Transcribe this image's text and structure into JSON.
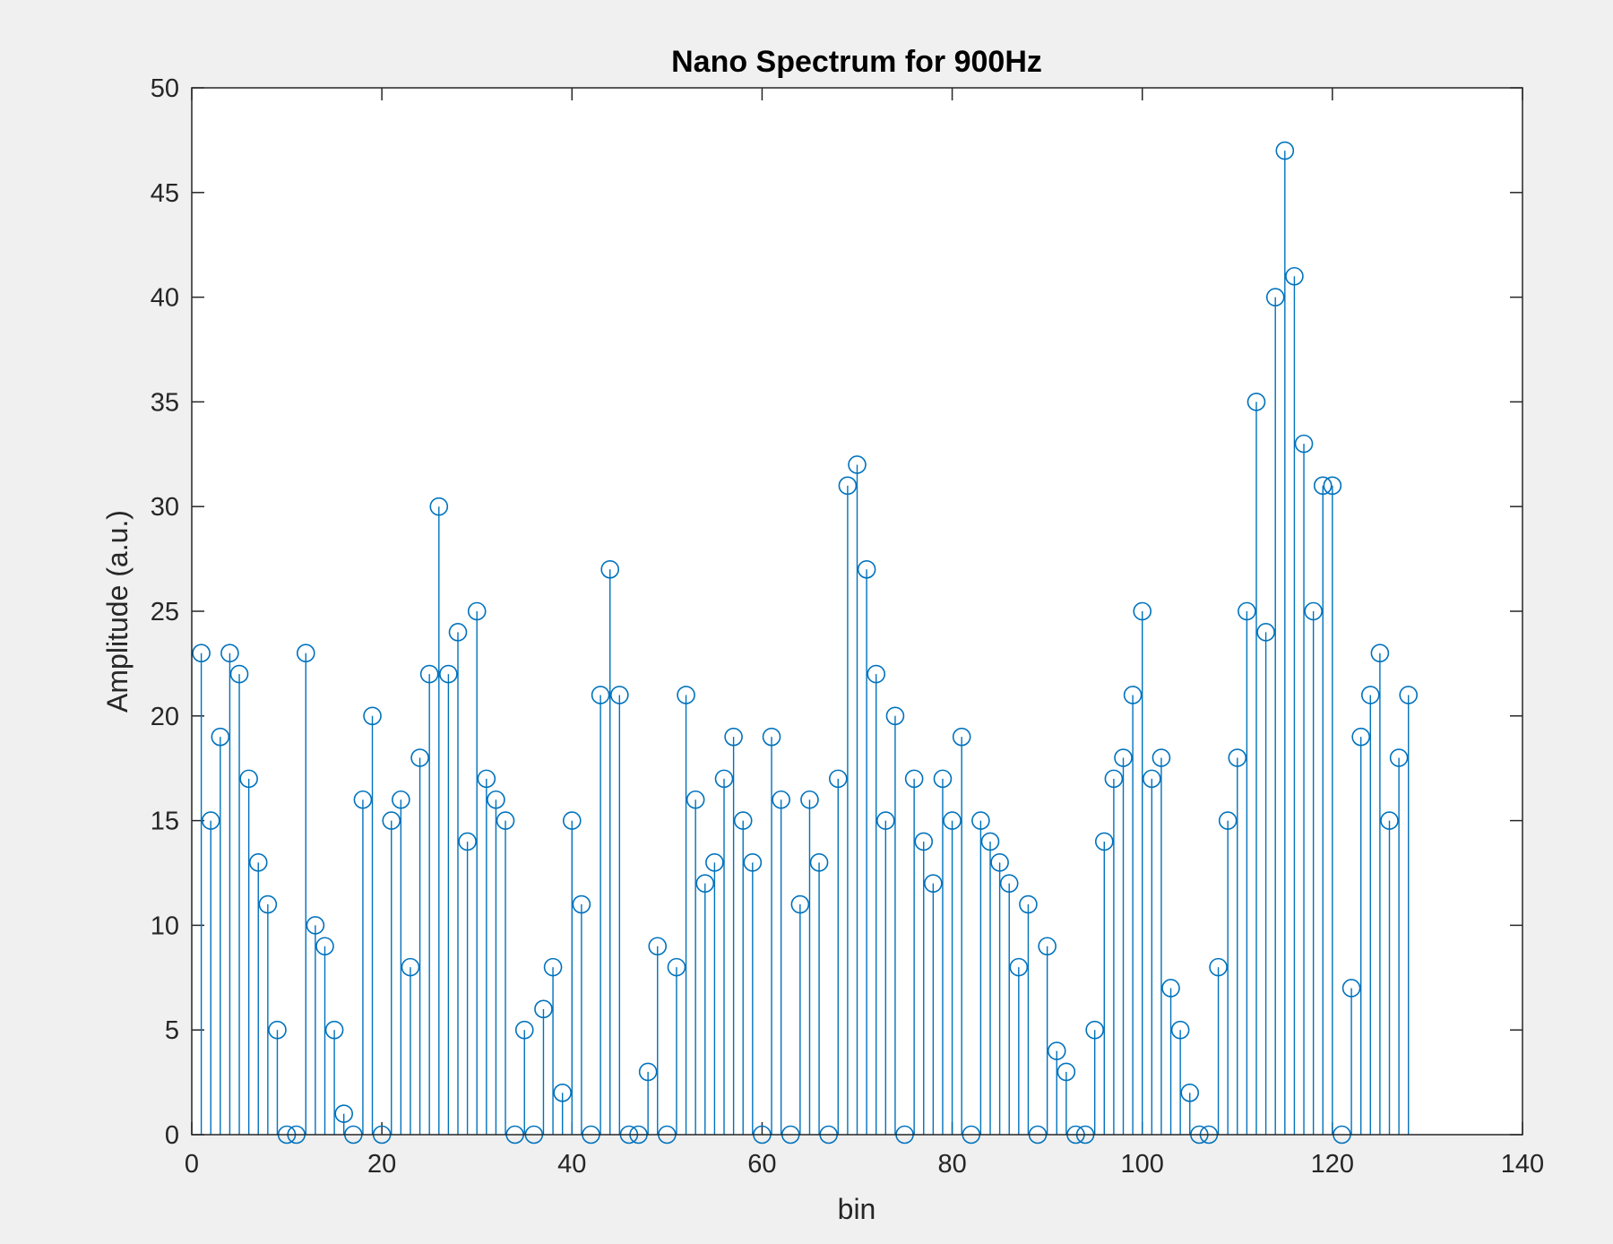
{
  "chart_data": {
    "type": "stem",
    "title": "Nano Spectrum for 900Hz",
    "xlabel": "bin",
    "ylabel": "Amplitude (a.u.)",
    "xlim": [
      0,
      140
    ],
    "ylim": [
      0,
      50
    ],
    "xticks": [
      0,
      20,
      40,
      60,
      80,
      100,
      120,
      140
    ],
    "yticks": [
      0,
      5,
      10,
      15,
      20,
      25,
      30,
      35,
      40,
      45,
      50
    ],
    "grid": false,
    "marker": "circle",
    "series_color": "#0072BD",
    "x": [
      1,
      2,
      3,
      4,
      5,
      6,
      7,
      8,
      9,
      10,
      11,
      12,
      13,
      14,
      15,
      16,
      17,
      18,
      19,
      20,
      21,
      22,
      23,
      24,
      25,
      26,
      27,
      28,
      29,
      30,
      31,
      32,
      33,
      34,
      35,
      36,
      37,
      38,
      39,
      40,
      41,
      42,
      43,
      44,
      45,
      46,
      47,
      48,
      49,
      50,
      51,
      52,
      53,
      54,
      55,
      56,
      57,
      58,
      59,
      60,
      61,
      62,
      63,
      64,
      65,
      66,
      67,
      68,
      69,
      70,
      71,
      72,
      73,
      74,
      75,
      76,
      77,
      78,
      79,
      80,
      81,
      82,
      83,
      84,
      85,
      86,
      87,
      88,
      89,
      90,
      91,
      92,
      93,
      94,
      95,
      96,
      97,
      98,
      99,
      100,
      101,
      102,
      103,
      104,
      105,
      106,
      107,
      108,
      109,
      110,
      111,
      112,
      113,
      114,
      115,
      116,
      117,
      118,
      119,
      120,
      121,
      122,
      123,
      124,
      125,
      126,
      127,
      128
    ],
    "values": [
      23,
      15,
      19,
      23,
      22,
      17,
      13,
      11,
      5,
      0,
      0,
      23,
      10,
      9,
      5,
      1,
      0,
      16,
      20,
      0,
      15,
      16,
      8,
      18,
      22,
      30,
      22,
      24,
      14,
      25,
      17,
      16,
      15,
      0,
      5,
      0,
      6,
      8,
      2,
      15,
      11,
      0,
      21,
      27,
      21,
      0,
      0,
      3,
      9,
      0,
      8,
      21,
      16,
      12,
      13,
      17,
      19,
      15,
      13,
      0,
      19,
      16,
      0,
      11,
      16,
      13,
      0,
      17,
      31,
      32,
      27,
      22,
      15,
      20,
      0,
      17,
      14,
      12,
      17,
      15,
      19,
      0,
      15,
      14,
      13,
      12,
      8,
      11,
      0,
      9,
      4,
      3,
      0,
      0,
      5,
      14,
      17,
      18,
      21,
      25,
      17,
      18,
      7,
      5,
      2,
      0,
      0,
      8,
      15,
      18,
      25,
      35,
      24,
      40,
      47,
      41,
      33,
      25,
      31,
      31,
      0,
      7,
      19,
      21,
      23,
      15,
      18,
      21
    ]
  }
}
